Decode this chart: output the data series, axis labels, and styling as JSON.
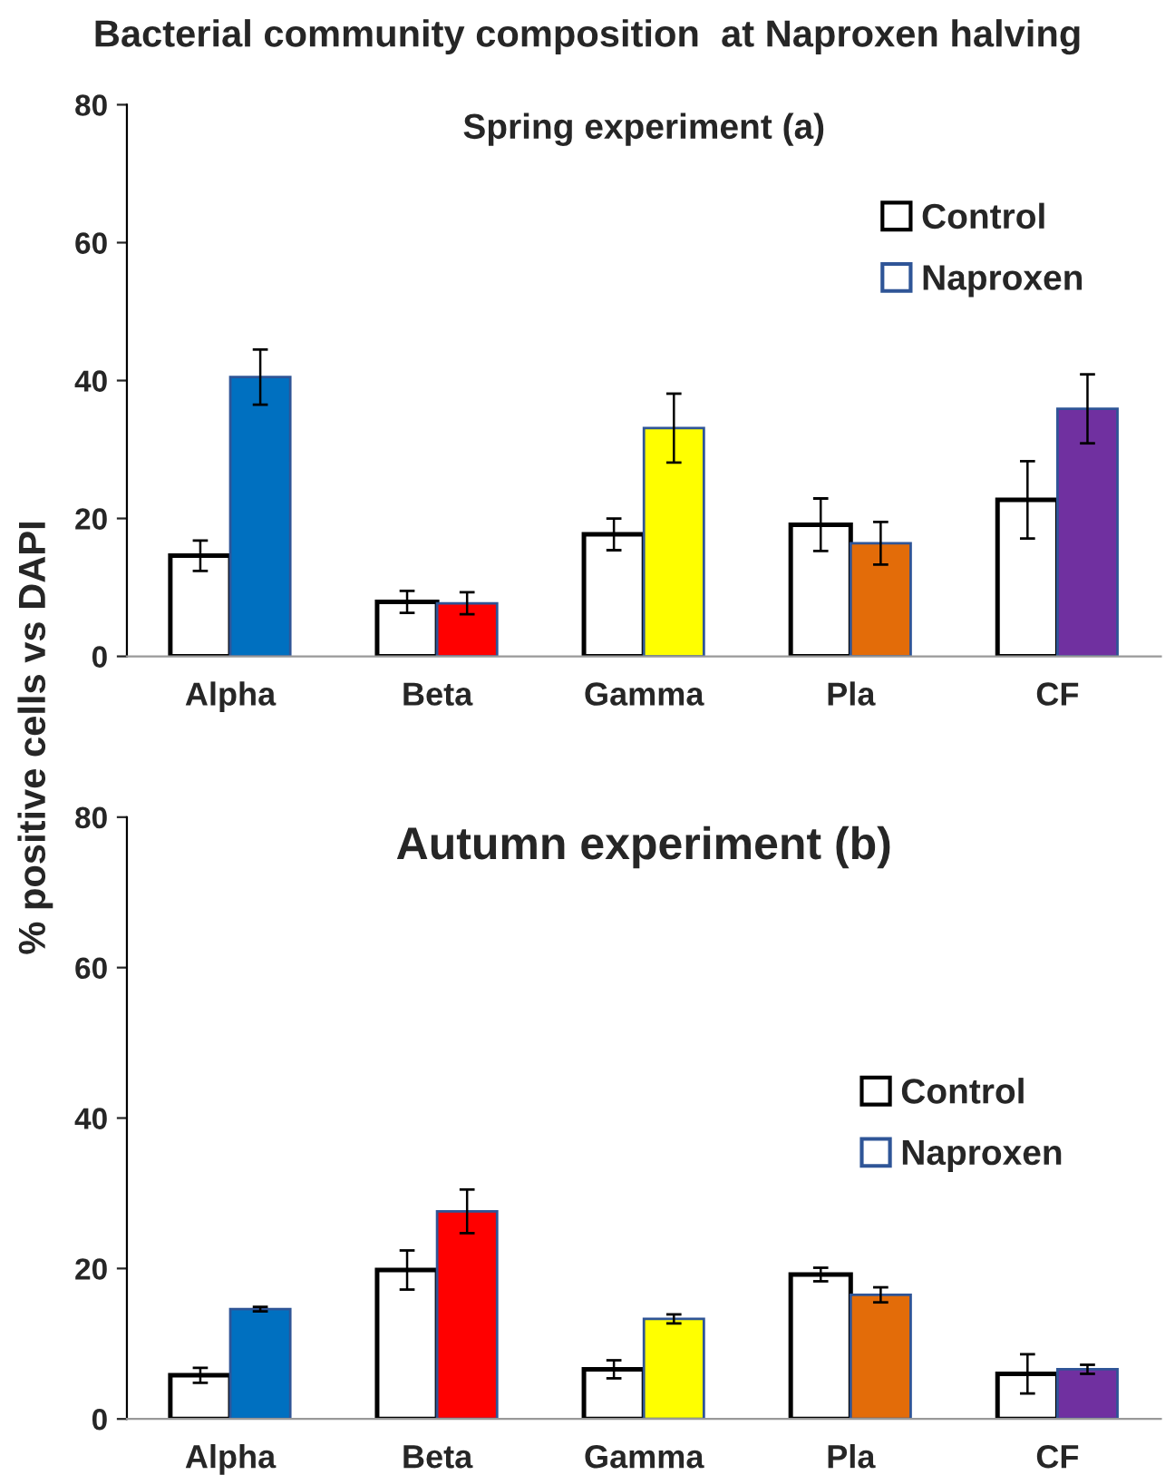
{
  "chart_data": [
    {
      "type": "bar",
      "title": "Bacterial community composition  at Naproxen halving",
      "subtitle": "Spring experiment (a)",
      "ylabel": "% positive cells vs DAPI",
      "categories": [
        "Alpha",
        "Beta",
        "Gamma",
        "Pla",
        "CF"
      ],
      "series": [
        {
          "name": "Control",
          "color": "#ffffff",
          "values": [
            14.6,
            7.9,
            17.7,
            19.1,
            22.7
          ],
          "errors": [
            2.2,
            1.6,
            2.3,
            3.8,
            5.6
          ]
        },
        {
          "name": "Naproxen",
          "colors": [
            "#0070c0",
            "#ff0000",
            "#ffff00",
            "#e36c09",
            "#7030a0"
          ],
          "values": [
            40.5,
            7.7,
            33.1,
            16.4,
            35.9
          ],
          "errors": [
            4,
            1.6,
            5,
            3.1,
            5
          ]
        }
      ],
      "ylim": [
        0,
        80
      ],
      "yticks": [
        0,
        20,
        40,
        60,
        80
      ],
      "legend": "top right"
    },
    {
      "type": "bar",
      "title": "Autumn experiment (b)",
      "categories": [
        "Alpha",
        "Beta",
        "Gamma",
        "Pla",
        "CF"
      ],
      "series": [
        {
          "name": "Control",
          "color": "#ffffff",
          "values": [
            5.8,
            19.8,
            6.6,
            19.2,
            6.0
          ],
          "errors": [
            1,
            2.6,
            1.2,
            0.9,
            2.6
          ]
        },
        {
          "name": "Naproxen",
          "colors": [
            "#0070c0",
            "#ff0000",
            "#ffff00",
            "#e36c09",
            "#7030a0"
          ],
          "values": [
            14.6,
            27.6,
            13.3,
            16.5,
            6.6
          ],
          "errors": [
            0.3,
            2.9,
            0.6,
            1.0,
            0.6
          ]
        }
      ],
      "ylim": [
        0,
        80
      ],
      "yticks": [
        0,
        20,
        40,
        60,
        80
      ],
      "legend": "right"
    }
  ]
}
